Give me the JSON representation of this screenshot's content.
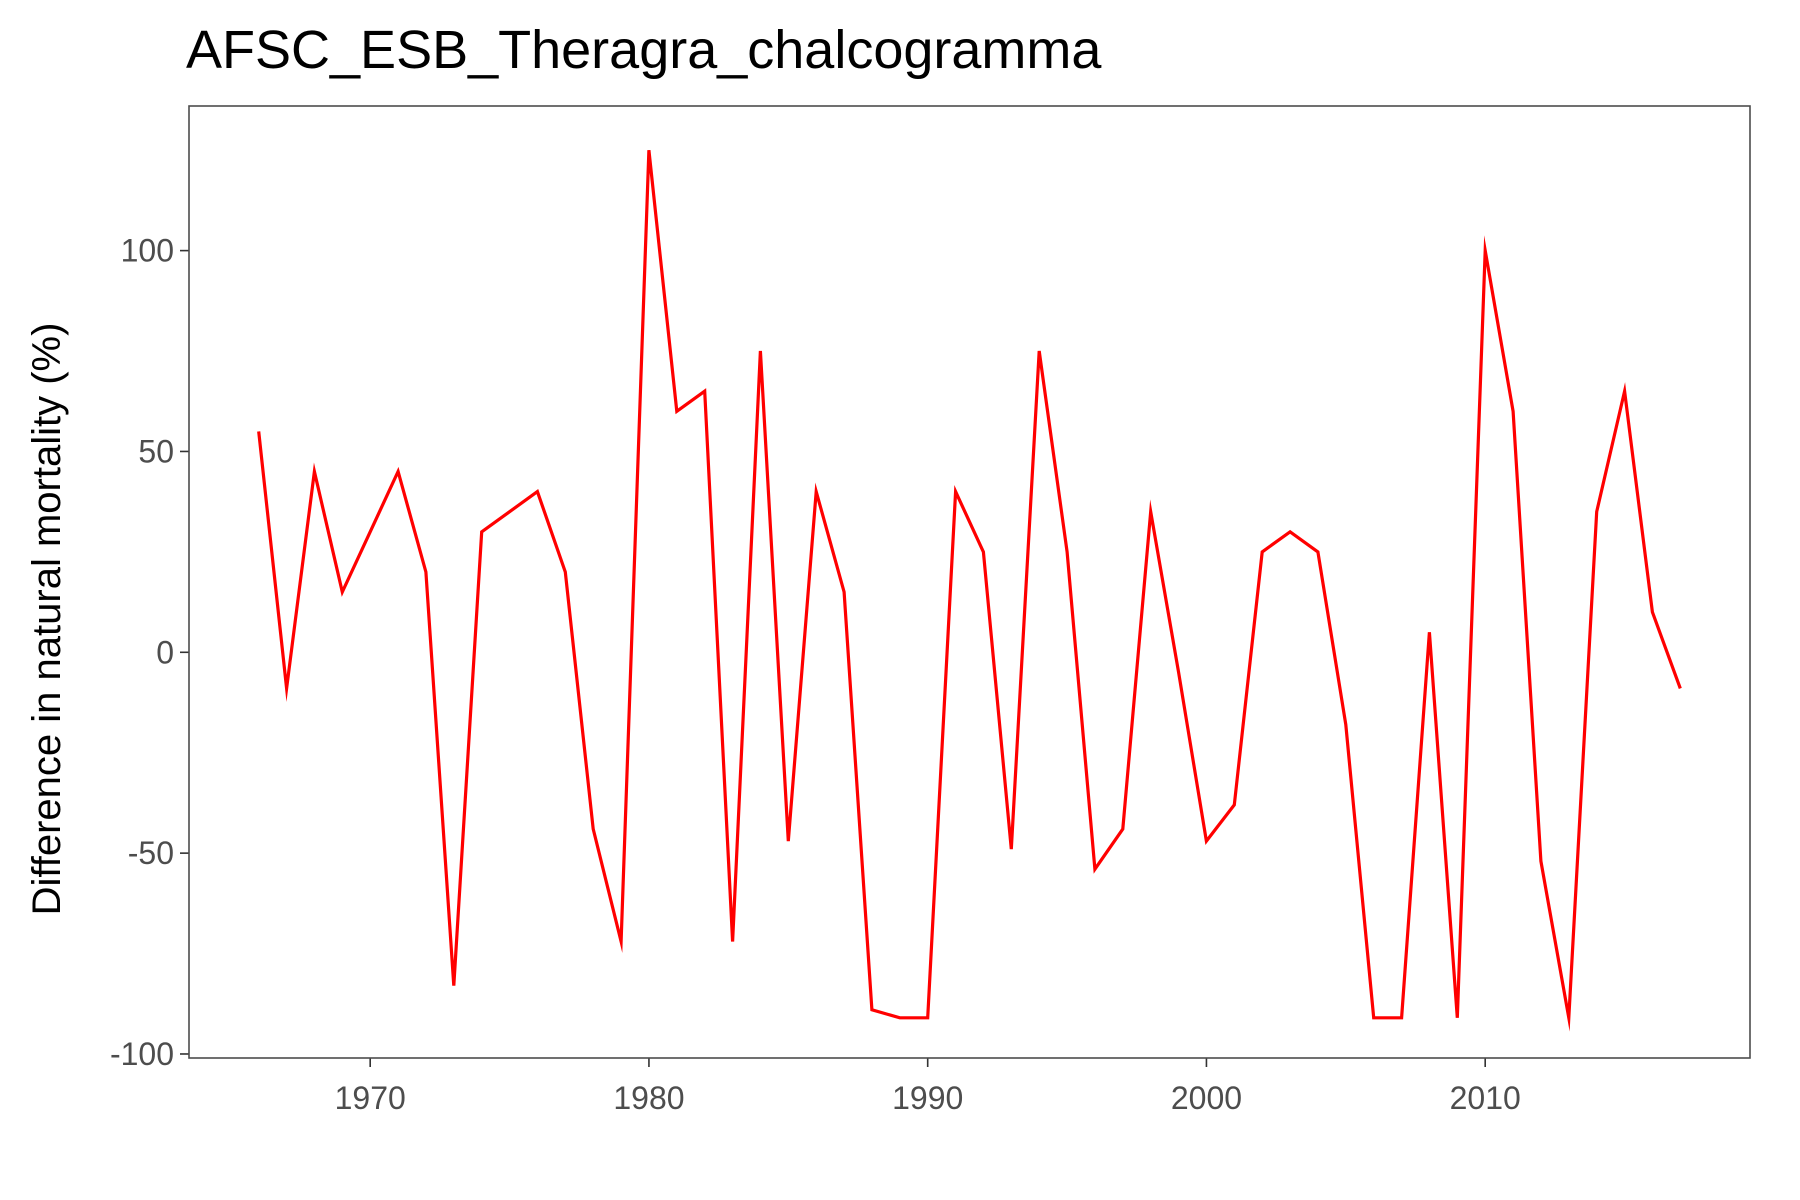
{
  "chart_data": {
    "type": "line",
    "title": "AFSC_ESB_Theragra_chalcogramma",
    "xlabel": "",
    "ylabel": "Difference in natural mortality (%)",
    "xlim": [
      1963.5,
      2019.5
    ],
    "ylim": [
      -101,
      136
    ],
    "x_ticks": [
      1970,
      1980,
      1990,
      2000,
      2010
    ],
    "y_ticks": [
      -100,
      -50,
      0,
      50,
      100
    ],
    "x_tick_labels": [
      "1970",
      "1980",
      "1990",
      "2000",
      "2010"
    ],
    "y_tick_labels": [
      "-100",
      "-50",
      "0",
      "50",
      "100"
    ],
    "grid": false,
    "line_color": "#ff0000",
    "panel_border_color": "#4d4d4d",
    "series": [
      {
        "x": [
          1966,
          1967,
          1968,
          1969,
          1970,
          1971,
          1972,
          1973,
          1974,
          1975,
          1976,
          1977,
          1978,
          1979,
          1980,
          1981,
          1982,
          1983,
          1984,
          1985,
          1986,
          1987,
          1988,
          1989,
          1990,
          1991,
          1992,
          1993,
          1994,
          1995,
          1996,
          1997,
          1998,
          1999,
          2000,
          2001,
          2002,
          2003,
          2004,
          2005,
          2006,
          2007,
          2008,
          2009,
          2010,
          2011,
          2012,
          2013,
          2014,
          2015,
          2016,
          2017
        ],
        "values": [
          55,
          -9,
          45,
          15,
          30,
          45,
          20,
          -83,
          30,
          35,
          40,
          20,
          -44,
          -72,
          125,
          60,
          65,
          -72,
          75,
          -47,
          40,
          15,
          -89,
          -91,
          -91,
          40,
          25,
          -49,
          75,
          25,
          -54,
          -44,
          35,
          -5,
          -47,
          -38,
          25,
          30,
          25,
          -18,
          -91,
          -91,
          5,
          -91,
          100,
          60,
          -52,
          -91,
          35,
          65,
          10,
          -9
        ]
      }
    ]
  }
}
